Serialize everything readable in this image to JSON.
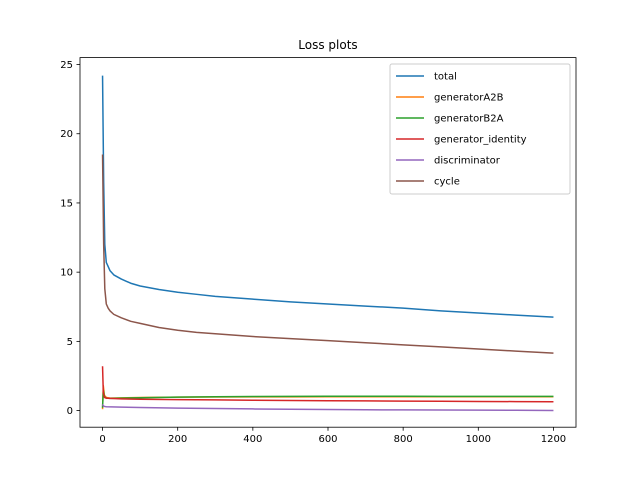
{
  "chart_data": {
    "type": "line",
    "title": "Loss plots",
    "xlabel": "",
    "ylabel": "",
    "xlim": [
      -60,
      1260
    ],
    "ylim": [
      -1.2,
      25.5
    ],
    "x_ticks": [
      0,
      200,
      400,
      600,
      800,
      1000,
      1200
    ],
    "y_ticks": [
      0,
      5,
      10,
      15,
      20,
      25
    ],
    "grid": false,
    "legend_position": "top-right",
    "series": [
      {
        "name": "total",
        "color": "#1f77b4",
        "x": [
          0,
          3,
          6,
          10,
          15,
          20,
          30,
          50,
          75,
          100,
          150,
          200,
          250,
          300,
          400,
          500,
          600,
          700,
          800,
          900,
          1000,
          1100,
          1200
        ],
        "y": [
          24.2,
          16.5,
          12.0,
          10.7,
          10.4,
          10.1,
          9.8,
          9.5,
          9.2,
          9.0,
          8.75,
          8.55,
          8.4,
          8.25,
          8.05,
          7.85,
          7.7,
          7.55,
          7.4,
          7.2,
          7.05,
          6.9,
          6.75
        ]
      },
      {
        "name": "generatorA2B",
        "color": "#ff7f0e",
        "x": [
          0,
          2,
          5,
          10,
          20,
          50,
          100,
          200,
          300,
          400,
          500,
          600,
          700,
          800,
          900,
          1000,
          1100,
          1200
        ],
        "y": [
          0.1,
          1.8,
          1.1,
          0.95,
          0.9,
          0.92,
          0.95,
          0.97,
          0.98,
          0.99,
          0.99,
          1.0,
          1.0,
          1.0,
          1.0,
          1.0,
          1.0,
          1.0
        ]
      },
      {
        "name": "generatorB2A",
        "color": "#2ca02c",
        "x": [
          0,
          2,
          5,
          10,
          20,
          50,
          100,
          200,
          300,
          400,
          500,
          600,
          700,
          800,
          900,
          1000,
          1100,
          1200
        ],
        "y": [
          0.2,
          1.5,
          1.0,
          0.9,
          0.88,
          0.9,
          0.93,
          0.97,
          1.0,
          1.02,
          1.03,
          1.04,
          1.04,
          1.04,
          1.03,
          1.03,
          1.03,
          1.03
        ]
      },
      {
        "name": "generator_identity",
        "color": "#d62728",
        "x": [
          0,
          2,
          5,
          10,
          20,
          50,
          100,
          200,
          300,
          400,
          500,
          600,
          700,
          800,
          900,
          1000,
          1100,
          1200
        ],
        "y": [
          3.2,
          1.3,
          0.95,
          0.9,
          0.88,
          0.85,
          0.82,
          0.79,
          0.77,
          0.75,
          0.73,
          0.71,
          0.7,
          0.68,
          0.67,
          0.66,
          0.65,
          0.64
        ]
      },
      {
        "name": "discriminator",
        "color": "#9467bd",
        "x": [
          0,
          2,
          5,
          10,
          50,
          100,
          200,
          300,
          400,
          500,
          600,
          700,
          800,
          900,
          1000,
          1100,
          1200
        ],
        "y": [
          0.45,
          0.35,
          0.3,
          0.28,
          0.25,
          0.22,
          0.18,
          0.15,
          0.12,
          0.1,
          0.08,
          0.06,
          0.05,
          0.04,
          0.03,
          0.02,
          0.01
        ]
      },
      {
        "name": "cycle",
        "color": "#8c564b",
        "x": [
          0,
          3,
          6,
          10,
          15,
          20,
          30,
          50,
          75,
          100,
          150,
          200,
          250,
          300,
          400,
          500,
          600,
          700,
          800,
          900,
          1000,
          1100,
          1200
        ],
        "y": [
          18.5,
          12.0,
          8.8,
          7.7,
          7.4,
          7.2,
          6.95,
          6.7,
          6.45,
          6.3,
          6.0,
          5.8,
          5.65,
          5.55,
          5.35,
          5.2,
          5.05,
          4.9,
          4.75,
          4.6,
          4.45,
          4.3,
          4.15
        ]
      }
    ]
  }
}
